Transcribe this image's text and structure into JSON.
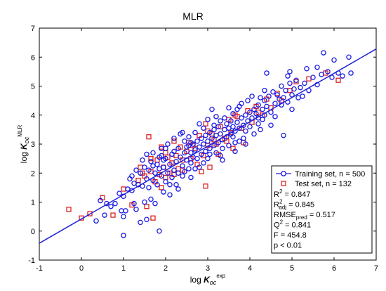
{
  "chart_data": {
    "type": "scatter",
    "title": "MLR",
    "xlabel": {
      "main": "log ",
      "italic": "K",
      "sub": "oc",
      "sup": "exp"
    },
    "ylabel": {
      "main": "log ",
      "italic": "K",
      "sub": "oc",
      "sup": "MLR"
    },
    "xlim": [
      -1,
      7
    ],
    "ylim": [
      -1,
      7
    ],
    "xticks": [
      "-1",
      "0",
      "1",
      "2",
      "3",
      "4",
      "5",
      "6",
      "7"
    ],
    "yticks": [
      "-1",
      "0",
      "1",
      "2",
      "3",
      "4",
      "5",
      "6",
      "7"
    ],
    "grid": false,
    "legend_position": "bottom-right",
    "fit_line": {
      "x": [
        -1,
        7
      ],
      "y": [
        -0.42,
        6.28
      ],
      "color": "#1f1fd8"
    },
    "series": [
      {
        "name": "Training set, n = 500",
        "marker": "circle",
        "color": "#1a1ae6",
        "points": [
          [
            0.35,
            0.35
          ],
          [
            0.45,
            1.05
          ],
          [
            0.55,
            0.55
          ],
          [
            0.7,
            0.85
          ],
          [
            0.8,
            0.95
          ],
          [
            0.9,
            1.3
          ],
          [
            0.95,
            0.7
          ],
          [
            1.0,
            1.2
          ],
          [
            1.0,
            -0.15
          ],
          [
            1.05,
            0.7
          ],
          [
            1.1,
            1.45
          ],
          [
            1.15,
            1.8
          ],
          [
            1.2,
            1.4
          ],
          [
            1.25,
            0.95
          ],
          [
            1.3,
            2.1
          ],
          [
            1.3,
            0.75
          ],
          [
            1.35,
            1.6
          ],
          [
            1.4,
            2.0
          ],
          [
            1.4,
            0.3
          ],
          [
            1.45,
            1.55
          ],
          [
            1.5,
            2.2
          ],
          [
            1.5,
            1.0
          ],
          [
            1.55,
            1.8
          ],
          [
            1.55,
            2.65
          ],
          [
            1.6,
            1.5
          ],
          [
            1.6,
            2.1
          ],
          [
            1.65,
            2.4
          ],
          [
            1.65,
            1.1
          ],
          [
            1.7,
            1.75
          ],
          [
            1.7,
            2.7
          ],
          [
            1.75,
            2.0
          ],
          [
            1.75,
            0.95
          ],
          [
            1.8,
            2.3
          ],
          [
            1.8,
            1.6
          ],
          [
            1.85,
            2.55
          ],
          [
            1.85,
            0.0
          ],
          [
            1.9,
            1.9
          ],
          [
            1.9,
            2.85
          ],
          [
            1.95,
            2.2
          ],
          [
            1.95,
            1.35
          ],
          [
            2.0,
            2.5
          ],
          [
            2.0,
            1.7
          ],
          [
            2.05,
            2.0
          ],
          [
            2.05,
            3.0
          ],
          [
            2.1,
            2.3
          ],
          [
            2.1,
            1.25
          ],
          [
            2.15,
            2.65
          ],
          [
            2.15,
            1.85
          ],
          [
            2.2,
            2.1
          ],
          [
            2.2,
            3.2
          ],
          [
            2.25,
            2.4
          ],
          [
            2.25,
            1.6
          ],
          [
            2.3,
            2.85
          ],
          [
            2.3,
            2.0
          ],
          [
            2.35,
            2.55
          ],
          [
            2.35,
            3.35
          ],
          [
            2.4,
            2.25
          ],
          [
            2.4,
            1.9
          ],
          [
            2.45,
            2.7
          ],
          [
            2.45,
            3.1
          ],
          [
            2.5,
            2.45
          ],
          [
            2.5,
            2.9
          ],
          [
            2.55,
            2.15
          ],
          [
            2.55,
            3.25
          ],
          [
            2.6,
            2.7
          ],
          [
            2.6,
            2.35
          ],
          [
            2.65,
            3.0
          ],
          [
            2.65,
            2.55
          ],
          [
            2.7,
            2.8
          ],
          [
            2.7,
            3.4
          ],
          [
            2.75,
            2.5
          ],
          [
            2.75,
            3.1
          ],
          [
            2.8,
            2.9
          ],
          [
            2.8,
            2.2
          ],
          [
            2.85,
            3.2
          ],
          [
            2.85,
            2.65
          ],
          [
            2.9,
            3.0
          ],
          [
            2.9,
            3.55
          ],
          [
            2.95,
            2.75
          ],
          [
            2.95,
            3.3
          ],
          [
            3.0,
            3.1
          ],
          [
            3.0,
            2.5
          ],
          [
            3.05,
            3.4
          ],
          [
            3.05,
            2.85
          ],
          [
            3.1,
            3.2
          ],
          [
            3.1,
            4.2
          ],
          [
            3.15,
            2.95
          ],
          [
            3.15,
            3.5
          ],
          [
            3.2,
            3.3
          ],
          [
            3.2,
            2.7
          ],
          [
            3.25,
            3.6
          ],
          [
            3.25,
            3.05
          ],
          [
            3.3,
            3.35
          ],
          [
            3.3,
            3.8
          ],
          [
            3.35,
            3.15
          ],
          [
            3.35,
            2.45
          ],
          [
            3.4,
            3.5
          ],
          [
            3.4,
            3.9
          ],
          [
            3.45,
            3.25
          ],
          [
            3.45,
            3.7
          ],
          [
            3.5,
            3.55
          ],
          [
            3.5,
            2.95
          ],
          [
            3.55,
            3.8
          ],
          [
            3.55,
            3.35
          ],
          [
            3.6,
            3.6
          ],
          [
            3.6,
            4.05
          ],
          [
            3.65,
            3.45
          ],
          [
            3.65,
            2.75
          ],
          [
            3.7,
            3.75
          ],
          [
            3.7,
            4.2
          ],
          [
            3.75,
            3.55
          ],
          [
            3.75,
            3.1
          ],
          [
            3.8,
            3.9
          ],
          [
            3.8,
            4.4
          ],
          [
            3.85,
            3.65
          ],
          [
            3.85,
            3.2
          ],
          [
            3.9,
            4.0
          ],
          [
            3.9,
            3.45
          ],
          [
            3.95,
            3.8
          ],
          [
            3.95,
            4.5
          ],
          [
            4.0,
            4.1
          ],
          [
            4.0,
            3.6
          ],
          [
            4.05,
            3.9
          ],
          [
            4.05,
            4.65
          ],
          [
            4.1,
            4.2
          ],
          [
            4.1,
            3.35
          ],
          [
            4.15,
            4.05
          ],
          [
            4.2,
            4.35
          ],
          [
            4.2,
            3.7
          ],
          [
            4.25,
            4.6
          ],
          [
            4.3,
            4.2
          ],
          [
            4.3,
            3.85
          ],
          [
            4.35,
            4.5
          ],
          [
            4.4,
            4.3
          ],
          [
            4.4,
            5.45
          ],
          [
            4.45,
            4.65
          ],
          [
            4.5,
            4.1
          ],
          [
            4.55,
            4.8
          ],
          [
            4.6,
            4.4
          ],
          [
            4.6,
            3.95
          ],
          [
            4.65,
            4.7
          ],
          [
            4.7,
            4.55
          ],
          [
            4.75,
            5.0
          ],
          [
            4.8,
            4.6
          ],
          [
            4.8,
            3.3
          ],
          [
            4.85,
            4.85
          ],
          [
            4.9,
            4.45
          ],
          [
            4.95,
            5.1
          ],
          [
            5.0,
            4.7
          ],
          [
            5.05,
            4.9
          ],
          [
            5.1,
            5.2
          ],
          [
            5.15,
            4.6
          ],
          [
            5.2,
            4.95
          ],
          [
            5.3,
            5.1
          ],
          [
            5.35,
            5.6
          ],
          [
            5.4,
            4.85
          ],
          [
            5.5,
            5.3
          ],
          [
            5.6,
            5.65
          ],
          [
            5.7,
            5.4
          ],
          [
            5.75,
            6.15
          ],
          [
            5.85,
            5.5
          ],
          [
            5.95,
            5.3
          ],
          [
            6.0,
            5.9
          ],
          [
            6.1,
            5.45
          ],
          [
            6.2,
            5.35
          ],
          [
            6.35,
            6.0
          ],
          [
            6.4,
            5.45
          ],
          [
            4.35,
            4.0
          ],
          [
            3.2,
            3.95
          ],
          [
            2.6,
            3.05
          ],
          [
            2.0,
            2.85
          ],
          [
            1.45,
            2.45
          ],
          [
            1.2,
            1.9
          ],
          [
            2.8,
            3.7
          ],
          [
            3.5,
            4.25
          ],
          [
            3.0,
            3.85
          ],
          [
            2.4,
            3.4
          ],
          [
            1.9,
            2.6
          ],
          [
            1.7,
            2.25
          ],
          [
            2.2,
            2.75
          ],
          [
            2.9,
            2.35
          ],
          [
            3.6,
            3.25
          ],
          [
            4.2,
            3.9
          ],
          [
            4.9,
            5.35
          ],
          [
            1.0,
            0.5
          ],
          [
            0.6,
            0.95
          ],
          [
            1.55,
            0.4
          ],
          [
            2.3,
            1.45
          ],
          [
            2.6,
            1.85
          ],
          [
            3.3,
            2.6
          ],
          [
            3.9,
            3.0
          ],
          [
            4.5,
            3.65
          ],
          [
            5.0,
            4.2
          ],
          [
            5.6,
            5.05
          ],
          [
            1.25,
            1.65
          ],
          [
            1.85,
            2.15
          ],
          [
            2.45,
            2.05
          ],
          [
            3.05,
            2.65
          ],
          [
            3.65,
            3.05
          ],
          [
            4.25,
            3.5
          ],
          [
            4.75,
            4.35
          ],
          [
            5.25,
            4.65
          ],
          [
            2.1,
            1.6
          ],
          [
            2.7,
            2.15
          ],
          [
            3.35,
            2.85
          ],
          [
            1.95,
            2.45
          ],
          [
            2.55,
            2.95
          ],
          [
            3.15,
            3.65
          ],
          [
            3.75,
            4.3
          ],
          [
            4.35,
            4.85
          ],
          [
            4.95,
            5.5
          ]
        ]
      },
      {
        "name": "Test set, n = 132",
        "marker": "square",
        "color": "#e02020",
        "points": [
          [
            -0.3,
            0.75
          ],
          [
            0.0,
            0.45
          ],
          [
            0.2,
            0.6
          ],
          [
            0.5,
            1.15
          ],
          [
            0.75,
            0.55
          ],
          [
            1.0,
            1.45
          ],
          [
            1.2,
            0.9
          ],
          [
            1.35,
            1.75
          ],
          [
            1.4,
            2.2
          ],
          [
            1.5,
            1.9
          ],
          [
            1.55,
            0.85
          ],
          [
            1.6,
            3.25
          ],
          [
            1.65,
            2.05
          ],
          [
            1.7,
            0.45
          ],
          [
            1.75,
            1.7
          ],
          [
            1.8,
            2.45
          ],
          [
            1.85,
            1.95
          ],
          [
            1.9,
            2.9
          ],
          [
            1.95,
            2.2
          ],
          [
            2.0,
            1.85
          ],
          [
            2.05,
            2.55
          ],
          [
            2.1,
            2.0
          ],
          [
            2.15,
            2.35
          ],
          [
            2.2,
            3.1
          ],
          [
            2.25,
            2.6
          ],
          [
            2.3,
            2.15
          ],
          [
            2.35,
            2.9
          ],
          [
            2.4,
            2.45
          ],
          [
            2.5,
            2.75
          ],
          [
            2.55,
            3.05
          ],
          [
            2.6,
            2.5
          ],
          [
            2.7,
            2.85
          ],
          [
            2.75,
            2.3
          ],
          [
            2.8,
            3.3
          ],
          [
            2.9,
            2.6
          ],
          [
            2.95,
            3.7
          ],
          [
            3.0,
            2.95
          ],
          [
            3.05,
            2.2
          ],
          [
            3.1,
            3.35
          ],
          [
            3.2,
            3.0
          ],
          [
            3.25,
            2.65
          ],
          [
            3.3,
            3.6
          ],
          [
            3.4,
            3.2
          ],
          [
            3.5,
            3.85
          ],
          [
            3.55,
            3.4
          ],
          [
            3.6,
            2.85
          ],
          [
            3.7,
            3.95
          ],
          [
            3.8,
            3.55
          ],
          [
            3.85,
            3.05
          ],
          [
            3.95,
            4.15
          ],
          [
            4.05,
            3.75
          ],
          [
            4.15,
            4.3
          ],
          [
            4.3,
            4.0
          ],
          [
            4.4,
            4.55
          ],
          [
            4.5,
            4.25
          ],
          [
            4.65,
            4.75
          ],
          [
            4.75,
            4.5
          ],
          [
            4.95,
            4.85
          ],
          [
            5.1,
            5.15
          ],
          [
            5.4,
            5.25
          ],
          [
            5.8,
            5.45
          ],
          [
            6.1,
            5.2
          ],
          [
            2.0,
            2.7
          ],
          [
            2.4,
            2.1
          ],
          [
            2.65,
            2.95
          ],
          [
            3.15,
            3.15
          ],
          [
            3.45,
            3.1
          ],
          [
            1.9,
            1.5
          ],
          [
            2.2,
            1.95
          ],
          [
            1.65,
            2.5
          ],
          [
            3.0,
            3.45
          ],
          [
            3.65,
            4.0
          ],
          [
            4.2,
            4.1
          ],
          [
            2.85,
            2.05
          ],
          [
            1.45,
            2.0
          ],
          [
            2.95,
            1.55
          ]
        ]
      }
    ],
    "stats": [
      {
        "base": "R",
        "sub": "",
        "sup": "2",
        "value": " = 0.847"
      },
      {
        "base": "R",
        "sub": "adj",
        "sup": "2",
        "value": " = 0.845"
      },
      {
        "base": "RMSE",
        "sub": "pred",
        "sup": "",
        "value": " = 0.517"
      },
      {
        "base": "Q",
        "sub": "",
        "sup": "2",
        "value": " = 0.841"
      },
      {
        "base": "F",
        "sub": "",
        "sup": "",
        "value": " = 454.8"
      },
      {
        "base": "p < 0.01",
        "sub": "",
        "sup": "",
        "value": ""
      }
    ]
  }
}
